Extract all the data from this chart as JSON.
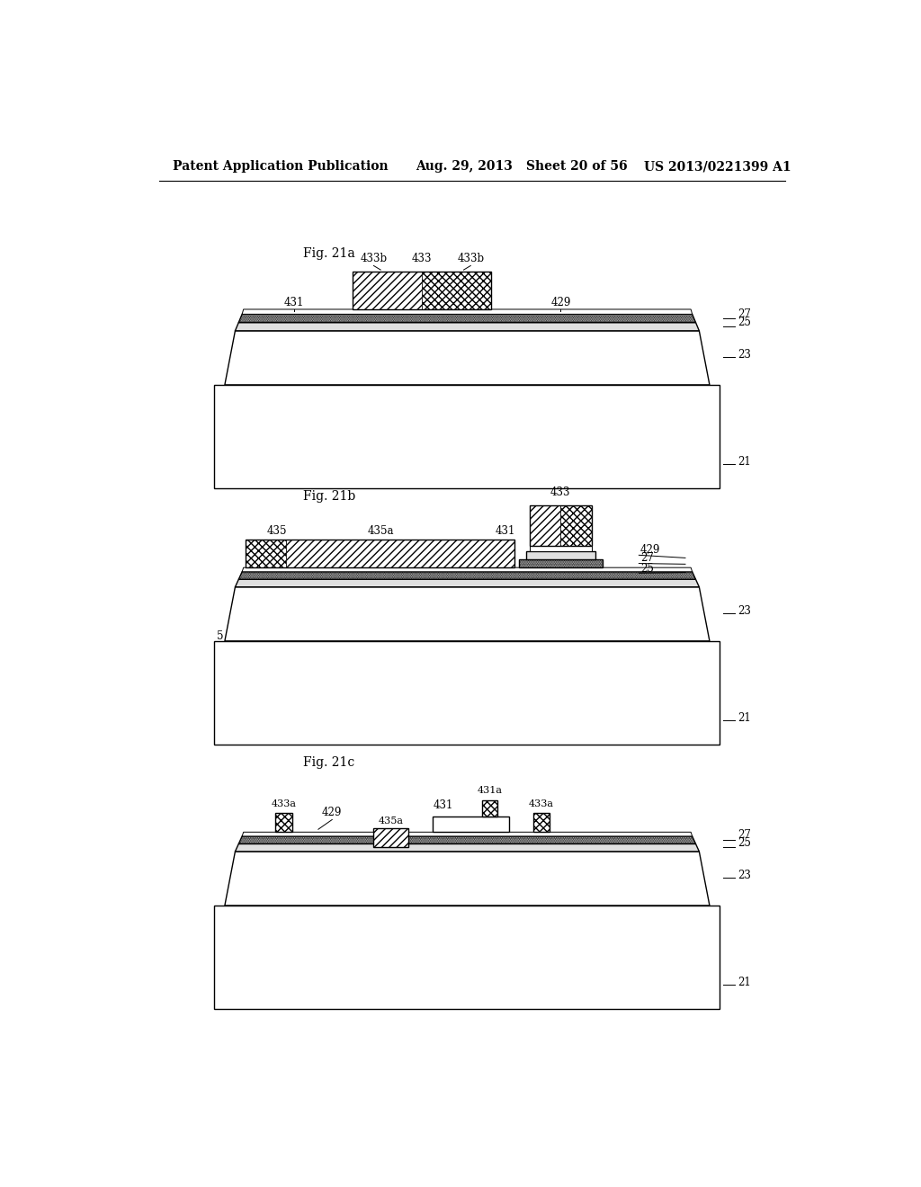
{
  "bg_color": "#ffffff",
  "header_text1": "Patent Application Publication",
  "header_text2": "Aug. 29, 2013",
  "header_text3": "Sheet 20 of 56",
  "header_text4": "US 2013/0221399 A1",
  "lw": 1.0
}
